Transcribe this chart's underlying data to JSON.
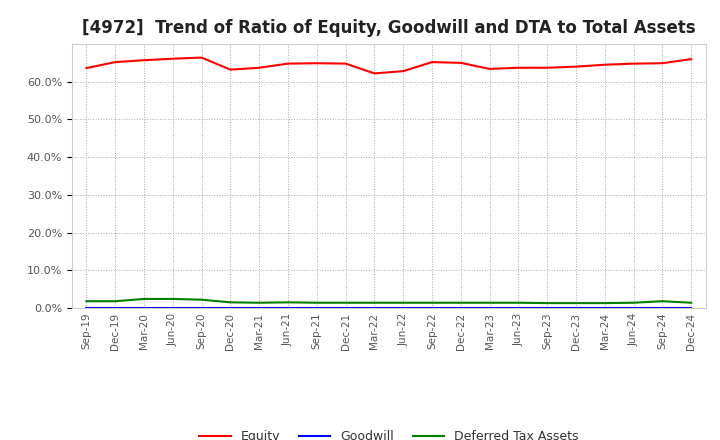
{
  "title": "[4972]  Trend of Ratio of Equity, Goodwill and DTA to Total Assets",
  "x_labels": [
    "Sep-19",
    "Dec-19",
    "Mar-20",
    "Jun-20",
    "Sep-20",
    "Dec-20",
    "Mar-21",
    "Jun-21",
    "Sep-21",
    "Dec-21",
    "Mar-22",
    "Jun-22",
    "Sep-22",
    "Dec-22",
    "Mar-23",
    "Jun-23",
    "Sep-23",
    "Dec-23",
    "Mar-24",
    "Jun-24",
    "Sep-24",
    "Dec-24"
  ],
  "equity": [
    0.636,
    0.652,
    0.657,
    0.661,
    0.664,
    0.632,
    0.637,
    0.648,
    0.649,
    0.648,
    0.622,
    0.628,
    0.652,
    0.65,
    0.634,
    0.637,
    0.637,
    0.64,
    0.645,
    0.648,
    0.649,
    0.66
  ],
  "goodwill": [
    0.0,
    0.0,
    0.0,
    0.0,
    0.0,
    0.0,
    0.0,
    0.0,
    0.0,
    0.0,
    0.0,
    0.0,
    0.0,
    0.0,
    0.0,
    0.0,
    0.0,
    0.0,
    0.0,
    0.0,
    0.0,
    0.0
  ],
  "dta": [
    0.018,
    0.018,
    0.024,
    0.024,
    0.022,
    0.015,
    0.014,
    0.015,
    0.014,
    0.014,
    0.014,
    0.014,
    0.014,
    0.014,
    0.014,
    0.014,
    0.013,
    0.013,
    0.013,
    0.014,
    0.018,
    0.014
  ],
  "equity_color": "#ff0000",
  "goodwill_color": "#0000ff",
  "dta_color": "#008000",
  "ylim": [
    0.0,
    0.7
  ],
  "yticks": [
    0.0,
    0.1,
    0.2,
    0.3,
    0.4,
    0.5,
    0.6
  ],
  "bg_color": "#ffffff",
  "plot_bg_color": "#ffffff",
  "grid_color": "#aaaaaa",
  "title_fontsize": 12,
  "legend_labels": [
    "Equity",
    "Goodwill",
    "Deferred Tax Assets"
  ]
}
